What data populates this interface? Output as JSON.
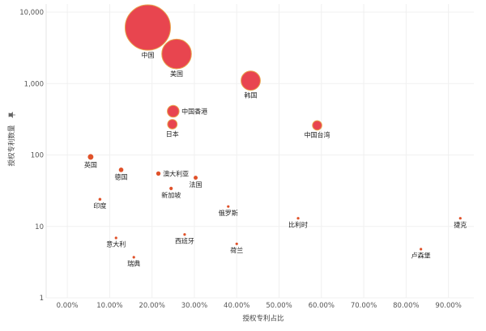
{
  "chart_data": {
    "type": "scatter",
    "title": "",
    "xlabel": "授权专利占比",
    "ylabel": "授权专利数量",
    "ylabel_icon": "pin-icon",
    "x_scale": "linear",
    "y_scale": "log",
    "xlim": [
      -0.05,
      0.96
    ],
    "ylim": [
      1,
      13000
    ],
    "x_ticks": [
      "0.00%",
      "10.00%",
      "20.00%",
      "30.00%",
      "40.00%",
      "50.00%",
      "60.00%",
      "70.00%",
      "80.00%",
      "90.00%"
    ],
    "y_ticks": [
      "1",
      "10",
      "100",
      "1,000",
      "10,000"
    ],
    "grid": true,
    "colors": {
      "bubble_fill": "#e8454f",
      "bubble_stroke": "#e8a24a",
      "small_point": "#e0522a"
    },
    "points": [
      {
        "label": "中国",
        "x": 0.19,
        "y": 6100,
        "size": 6100
      },
      {
        "label": "美国",
        "x": 0.258,
        "y": 2600,
        "size": 2600
      },
      {
        "label": "韩国",
        "x": 0.433,
        "y": 1100,
        "size": 1100
      },
      {
        "label": "中国香港",
        "x": 0.25,
        "y": 410,
        "size": 410
      },
      {
        "label": "日本",
        "x": 0.248,
        "y": 270,
        "size": 270
      },
      {
        "label": "中国台湾",
        "x": 0.59,
        "y": 260,
        "size": 260
      },
      {
        "label": "英国",
        "x": 0.055,
        "y": 94,
        "size": 94
      },
      {
        "label": "德国",
        "x": 0.127,
        "y": 62,
        "size": 62
      },
      {
        "label": "澳大利亚",
        "x": 0.215,
        "y": 55,
        "size": 55
      },
      {
        "label": "法国",
        "x": 0.303,
        "y": 48,
        "size": 48
      },
      {
        "label": "新加坡",
        "x": 0.245,
        "y": 34,
        "size": 34
      },
      {
        "label": "印度",
        "x": 0.077,
        "y": 24,
        "size": 24
      },
      {
        "label": "俄罗斯",
        "x": 0.38,
        "y": 19,
        "size": 19
      },
      {
        "label": "比利时",
        "x": 0.545,
        "y": 13,
        "size": 13
      },
      {
        "label": "捷克",
        "x": 0.928,
        "y": 13,
        "size": 13
      },
      {
        "label": "西班牙",
        "x": 0.277,
        "y": 7.7,
        "size": 7.7
      },
      {
        "label": "意大利",
        "x": 0.115,
        "y": 6.9,
        "size": 6.9
      },
      {
        "label": "荷兰",
        "x": 0.4,
        "y": 5.7,
        "size": 5.7
      },
      {
        "label": "卢森堡",
        "x": 0.835,
        "y": 4.8,
        "size": 4.8
      },
      {
        "label": "瑞典",
        "x": 0.157,
        "y": 3.7,
        "size": 3.7
      }
    ]
  }
}
